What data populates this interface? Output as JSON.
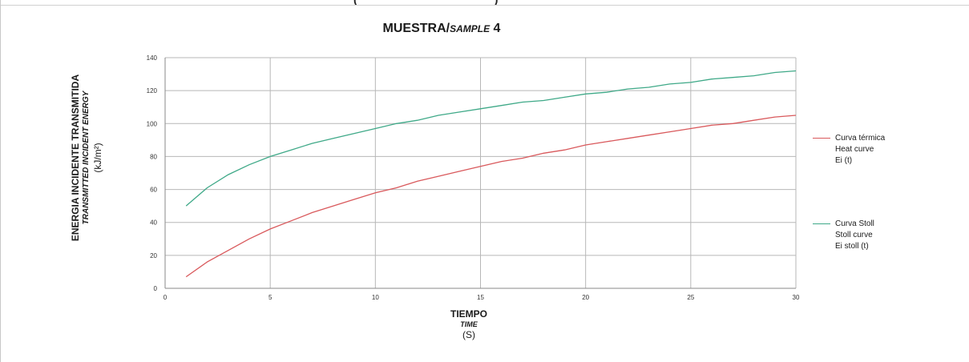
{
  "top_cut_text": "(                                            )",
  "title": {
    "main": "MUESTRA/",
    "italic": "SAMPLE",
    "suffix": " 4"
  },
  "y_label": {
    "line1": "ENERGIA INCIDENTE TRANSMITIDA",
    "line2": "TRANSMITTED INCIDENT ENERGY",
    "line3": "(kJ/m²)"
  },
  "x_label": {
    "line1": "TIEMPO",
    "line2": "TIME",
    "line3": "(S)"
  },
  "legend": [
    {
      "lines": [
        "Curva térmica",
        "Heat curve",
        "Ei (t)"
      ],
      "color": "#d9595c"
    },
    {
      "lines": [
        "Curva Stoll",
        "Stoll curve",
        "Ei stoll (t)"
      ],
      "color": "#3fa988"
    }
  ],
  "chart_data": {
    "type": "line",
    "title": "MUESTRA/SAMPLE 4",
    "xlabel": "TIEMPO TIME (S)",
    "ylabel": "ENERGIA INCIDENTE TRANSMITIDA TRANSMITTED INCIDENT ENERGY (kJ/m²)",
    "xlim": [
      0,
      30
    ],
    "ylim": [
      0,
      140
    ],
    "x_ticks": [
      0,
      5,
      10,
      15,
      20,
      25,
      30
    ],
    "y_ticks": [
      0,
      20,
      40,
      60,
      80,
      100,
      120,
      140
    ],
    "grid": true,
    "legend_position": "right",
    "x": [
      1,
      2,
      3,
      4,
      5,
      6,
      7,
      8,
      9,
      10,
      11,
      12,
      13,
      14,
      15,
      16,
      17,
      18,
      19,
      20,
      21,
      22,
      23,
      24,
      25,
      26,
      27,
      28,
      29,
      30
    ],
    "series": [
      {
        "name": "Curva térmica Heat curve Ei (t)",
        "color": "#d9595c",
        "values": [
          7,
          16,
          23,
          30,
          36,
          41,
          46,
          50,
          54,
          58,
          61,
          65,
          68,
          71,
          74,
          77,
          79,
          82,
          84,
          87,
          89,
          91,
          93,
          95,
          97,
          99,
          100,
          102,
          104,
          105
        ]
      },
      {
        "name": "Curva Stoll Stoll curve Ei stoll (t)",
        "color": "#3fa988",
        "values": [
          50,
          61,
          69,
          75,
          80,
          84,
          88,
          91,
          94,
          97,
          100,
          102,
          105,
          107,
          109,
          111,
          113,
          114,
          116,
          118,
          119,
          121,
          122,
          124,
          125,
          127,
          128,
          129,
          131,
          132
        ]
      }
    ]
  }
}
